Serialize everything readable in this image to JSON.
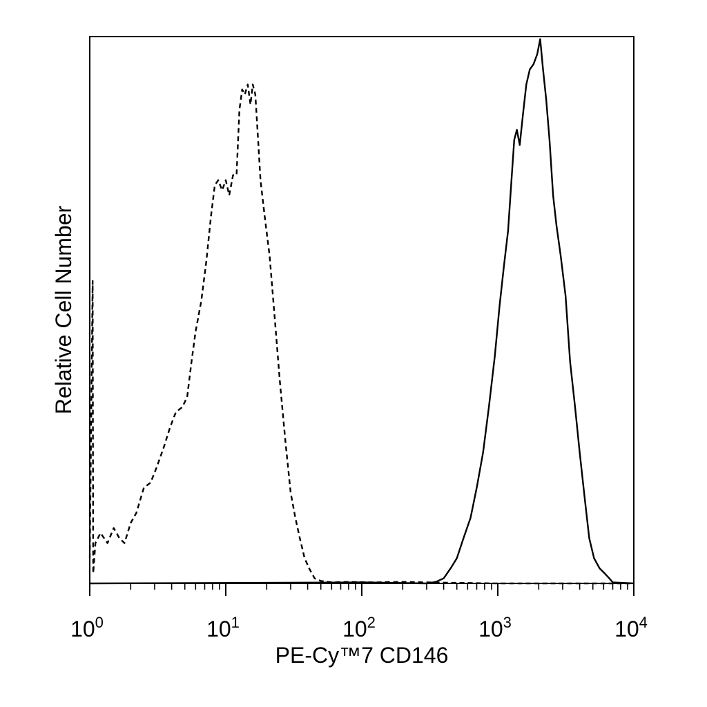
{
  "chart_data": {
    "type": "line",
    "title": "",
    "xlabel": "PE-Cy™7 CD146",
    "ylabel": "Relative Cell Number",
    "x_scale": "log",
    "xlim": [
      1,
      10000
    ],
    "ylim": [
      0,
      100
    ],
    "grid": false,
    "legend": "none",
    "x_ticks": [
      {
        "base": "10",
        "exp": "0",
        "value": 1
      },
      {
        "base": "10",
        "exp": "1",
        "value": 10
      },
      {
        "base": "10",
        "exp": "2",
        "value": 100
      },
      {
        "base": "10",
        "exp": "3",
        "value": 1000
      },
      {
        "base": "10",
        "exp": "4",
        "value": 10000
      }
    ],
    "series": [
      {
        "style": "dashed",
        "color": "#000000",
        "points": [
          [
            1.0,
            5
          ],
          [
            1.05,
            60
          ],
          [
            1.06,
            2
          ],
          [
            1.1,
            8
          ],
          [
            1.2,
            10
          ],
          [
            1.35,
            8
          ],
          [
            1.5,
            11
          ],
          [
            1.65,
            9
          ],
          [
            1.8,
            8
          ],
          [
            2.0,
            12
          ],
          [
            2.2,
            14
          ],
          [
            2.5,
            19
          ],
          [
            2.8,
            20
          ],
          [
            3.1,
            23
          ],
          [
            3.5,
            27
          ],
          [
            3.9,
            31
          ],
          [
            4.3,
            34
          ],
          [
            4.8,
            35
          ],
          [
            5.2,
            37
          ],
          [
            5.6,
            44
          ],
          [
            6.0,
            50
          ],
          [
            6.6,
            56
          ],
          [
            7.2,
            64
          ],
          [
            7.8,
            73
          ],
          [
            8.3,
            79
          ],
          [
            8.8,
            80
          ],
          [
            9.4,
            78
          ],
          [
            10.0,
            80
          ],
          [
            10.6,
            77
          ],
          [
            11.3,
            81
          ],
          [
            12.0,
            81
          ],
          [
            12.6,
            94
          ],
          [
            13.2,
            98
          ],
          [
            13.8,
            97
          ],
          [
            14.5,
            99
          ],
          [
            15.2,
            95
          ],
          [
            15.8,
            99
          ],
          [
            16.5,
            97
          ],
          [
            17.2,
            89
          ],
          [
            18.0,
            80
          ],
          [
            19.5,
            72
          ],
          [
            21.0,
            65
          ],
          [
            23.0,
            52
          ],
          [
            25.0,
            40
          ],
          [
            27.5,
            28
          ],
          [
            30.0,
            18
          ],
          [
            32.5,
            13
          ],
          [
            35.0,
            9
          ],
          [
            38.0,
            5
          ],
          [
            41.0,
            3
          ],
          [
            45.0,
            1
          ],
          [
            50.0,
            0.5
          ],
          [
            60.0,
            0.2
          ],
          [
            80.0,
            0.3
          ],
          [
            120.0,
            0.2
          ],
          [
            200.0,
            0.3
          ],
          [
            300.0,
            0.2
          ],
          [
            1000.0,
            0
          ],
          [
            10000.0,
            0
          ]
        ]
      },
      {
        "style": "solid",
        "color": "#000000",
        "points": [
          [
            1.0,
            0
          ],
          [
            100.0,
            0.2
          ],
          [
            300.0,
            0
          ],
          [
            350.0,
            0.3
          ],
          [
            400.0,
            1
          ],
          [
            450.0,
            3
          ],
          [
            500.0,
            5
          ],
          [
            560.0,
            9
          ],
          [
            630.0,
            13
          ],
          [
            700.0,
            19
          ],
          [
            780.0,
            26
          ],
          [
            860.0,
            35
          ],
          [
            950.0,
            45
          ],
          [
            1030.0,
            55
          ],
          [
            1110.0,
            63
          ],
          [
            1190.0,
            70
          ],
          [
            1260.0,
            80
          ],
          [
            1320.0,
            88
          ],
          [
            1380.0,
            90
          ],
          [
            1450.0,
            87
          ],
          [
            1530.0,
            93
          ],
          [
            1620.0,
            99
          ],
          [
            1720.0,
            102
          ],
          [
            1830.0,
            103
          ],
          [
            1950.0,
            105
          ],
          [
            2050.0,
            108
          ],
          [
            2150.0,
            102
          ],
          [
            2270.0,
            96
          ],
          [
            2400.0,
            88
          ],
          [
            2550.0,
            77
          ],
          [
            2700.0,
            71
          ],
          [
            2900.0,
            65
          ],
          [
            3150.0,
            57
          ],
          [
            3400.0,
            44
          ],
          [
            3700.0,
            35
          ],
          [
            4000.0,
            26
          ],
          [
            4350.0,
            17
          ],
          [
            4700.0,
            9
          ],
          [
            5100.0,
            5
          ],
          [
            5600.0,
            3
          ],
          [
            6100.0,
            2
          ],
          [
            6600.0,
            1
          ],
          [
            7000.0,
            0.2
          ],
          [
            10000.0,
            0
          ]
        ]
      }
    ]
  }
}
